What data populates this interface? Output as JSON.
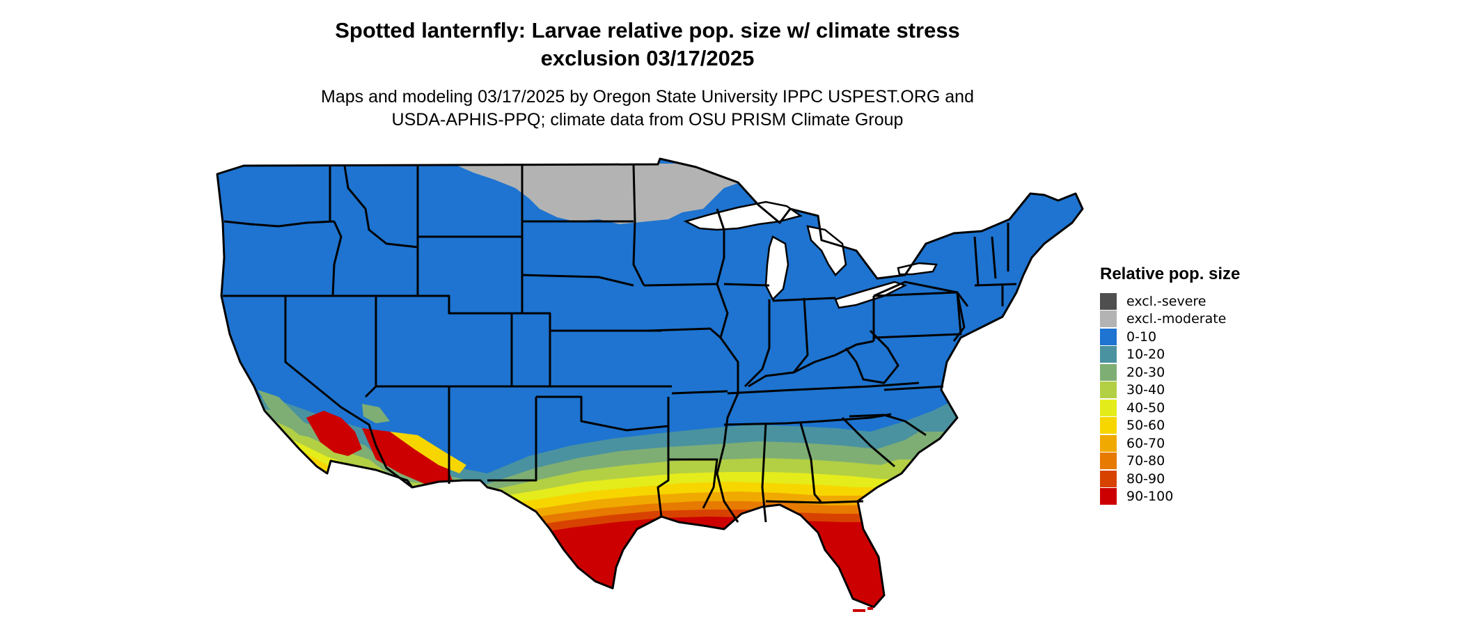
{
  "title_line1": "Spotted lanternfly: Larvae relative pop. size w/ climate stress",
  "title_line2": "exclusion 03/17/2025",
  "subtitle_line1": "Maps and modeling 03/17/2025 by Oregon State University IPPC USPEST.ORG and",
  "subtitle_line2": "USDA-APHIS-PPQ; climate data from OSU PRISM Climate Group",
  "legend": {
    "title": "Relative pop. size",
    "items": [
      {
        "label": "excl.-severe",
        "color": "#4f4f4f"
      },
      {
        "label": "excl.-moderate",
        "color": "#b3b3b3"
      },
      {
        "label": "0-10",
        "color": "#1e74d0"
      },
      {
        "label": "10-20",
        "color": "#4a92a0"
      },
      {
        "label": "20-30",
        "color": "#7fae74"
      },
      {
        "label": "30-40",
        "color": "#b3cf44"
      },
      {
        "label": "40-50",
        "color": "#e4ec1c"
      },
      {
        "label": "50-60",
        "color": "#f7d600"
      },
      {
        "label": "60-70",
        "color": "#f0a900"
      },
      {
        "label": "70-80",
        "color": "#e77a00"
      },
      {
        "label": "80-90",
        "color": "#d84200"
      },
      {
        "label": "90-100",
        "color": "#cc0000"
      }
    ]
  },
  "map_colors": {
    "water": "#ffffff",
    "outline": "#000000"
  }
}
